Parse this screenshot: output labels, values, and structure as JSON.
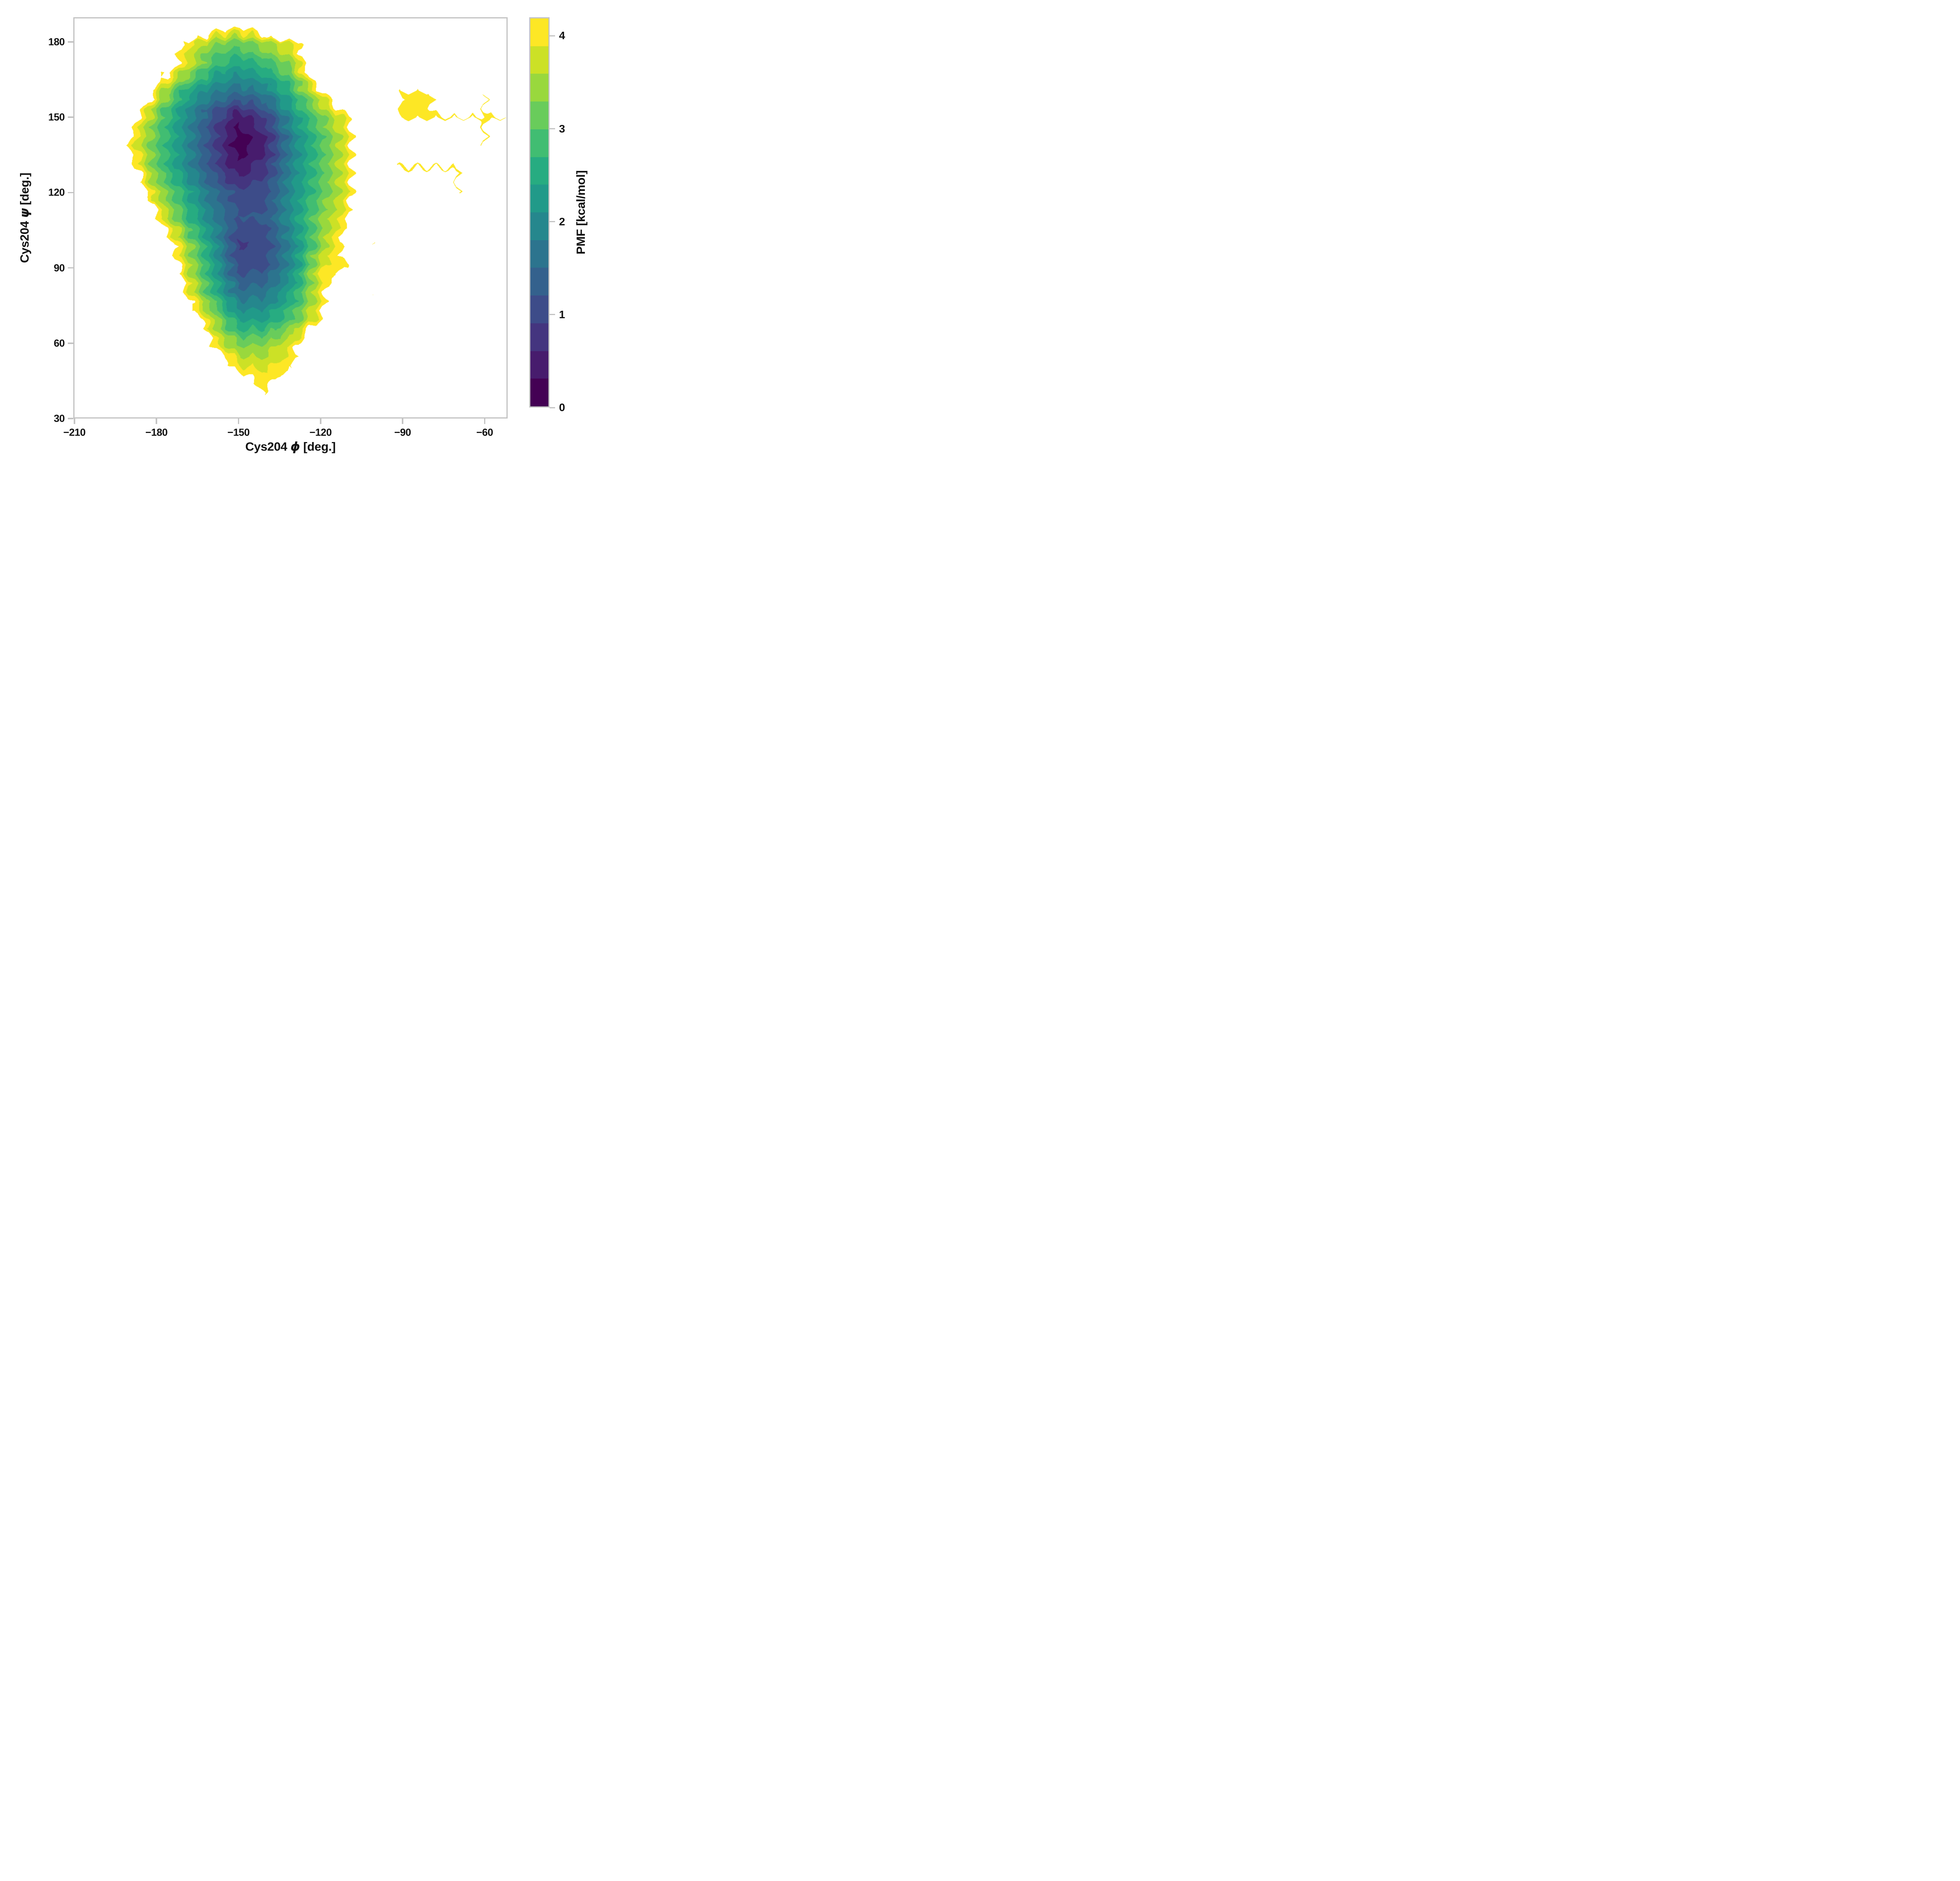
{
  "figure": {
    "background": "#ffffff",
    "frame_color": "#c3c3c3",
    "text_color": "#111111"
  },
  "axes": {
    "x": {
      "title_prefix": "Cys204 ",
      "title_greek": "ϕ",
      "title_suffix": " [deg.]",
      "tick_values": [
        -210,
        -180,
        -150,
        -120,
        -90,
        -60
      ],
      "tick_labels": [
        "−210",
        "−180",
        "−150",
        "−120",
        "−90",
        "−60"
      ],
      "range": [
        -210.4,
        -51.6
      ]
    },
    "y": {
      "title_prefix": "Cys204 ",
      "title_greek": "ψ",
      "title_suffix": " [deg.]",
      "tick_values": [
        30,
        60,
        90,
        120,
        150,
        180
      ],
      "tick_labels": [
        "30",
        "60",
        "90",
        "120",
        "150",
        "180"
      ],
      "range": [
        30,
        189.8
      ]
    }
  },
  "colorbar": {
    "label": "PMF [kcal/mol]",
    "tick_values": [
      0,
      1,
      2,
      3,
      4
    ],
    "tick_labels": [
      "0",
      "1",
      "2",
      "3",
      "4"
    ],
    "vmin": 0,
    "vmax": 4.2,
    "frame_color": "#c3c3c3"
  },
  "chart_data": {
    "type": "filled_contour",
    "xlabel": "Cys204 ϕ [deg.]",
    "ylabel": "Cys204 ψ [deg.]",
    "zlabel": "PMF [kcal/mol]",
    "x_range": [
      -210.4,
      -51.6
    ],
    "y_range": [
      30,
      189.8
    ],
    "x_ticks": [
      -210,
      -180,
      -150,
      -120,
      -90,
      -60
    ],
    "y_ticks": [
      30,
      60,
      90,
      120,
      150,
      180
    ],
    "z_ticks": [
      0,
      1,
      2,
      3,
      4
    ],
    "levels": [
      0,
      0.3,
      0.6,
      0.9,
      1.2,
      1.5,
      1.8,
      2.1,
      2.4,
      2.7,
      3.0,
      3.3,
      3.6,
      3.9,
      4.2
    ],
    "level_step": 0.3,
    "band_colors": [
      "#440154",
      "#471c6d",
      "#44357f",
      "#3d4c89",
      "#34618d",
      "#2c748e",
      "#25878d",
      "#219a89",
      "#27ac81",
      "#41bd72",
      "#69cc5b",
      "#99d83d",
      "#cce126",
      "#fde725"
    ],
    "no_data_value": 9.9,
    "global_minimum": {
      "phi": -150,
      "psi": 141,
      "pmf": 0.0
    },
    "secondary_basin": {
      "phi": -148,
      "psi": 100,
      "pmf": 0.85
    },
    "grid_phi": [
      -210,
      -200,
      -190,
      -180,
      -170,
      -160,
      -150,
      -140,
      -130,
      -120,
      -110,
      -100,
      -90,
      -80,
      -70,
      -60,
      -50
    ],
    "grid_psi": [
      190,
      180,
      170,
      160,
      150,
      140,
      130,
      120,
      110,
      100,
      90,
      80,
      70,
      60,
      50,
      40,
      30
    ],
    "pmf": [
      [
        9.9,
        9.9,
        9.9,
        9.9,
        9.9,
        5.5,
        5.0,
        5.5,
        9.9,
        9.9,
        9.9,
        9.9,
        9.9,
        9.9,
        9.9,
        9.9,
        9.9
      ],
      [
        9.9,
        9.9,
        9.9,
        5.5,
        4.1,
        3.45,
        3.15,
        3.6,
        4.05,
        5.0,
        9.9,
        9.9,
        9.9,
        9.9,
        9.9,
        9.9,
        9.9
      ],
      [
        9.9,
        9.9,
        9.9,
        5.0,
        3.9,
        2.8,
        2.35,
        2.7,
        3.4,
        5.5,
        9.9,
        9.9,
        9.9,
        9.9,
        9.9,
        9.9,
        9.9
      ],
      [
        9.9,
        9.9,
        6.0,
        3.9,
        2.6,
        1.9,
        1.55,
        1.85,
        2.75,
        4.0,
        5.5,
        9.9,
        4.1,
        4.1,
        9.9,
        4.15,
        9.9
      ],
      [
        9.9,
        9.9,
        4.7,
        3.2,
        2.1,
        1.15,
        0.35,
        0.95,
        2.2,
        3.2,
        4.05,
        6.0,
        3.95,
        4.0,
        4.1,
        4.15,
        4.15
      ],
      [
        9.9,
        9.9,
        4.1,
        3.05,
        2.1,
        1.05,
        0.1,
        0.55,
        1.9,
        2.9,
        3.9,
        6.0,
        9.9,
        9.9,
        9.9,
        4.1,
        9.9
      ],
      [
        9.9,
        9.9,
        4.6,
        3.1,
        2.1,
        1.15,
        0.35,
        0.8,
        2.0,
        2.95,
        3.95,
        6.0,
        3.9,
        4.05,
        4.15,
        9.9,
        9.9
      ],
      [
        9.9,
        9.9,
        5.2,
        3.6,
        2.6,
        1.6,
        1.0,
        1.1,
        2.1,
        3.0,
        3.9,
        6.0,
        9.9,
        9.9,
        4.1,
        9.9,
        9.9
      ],
      [
        9.9,
        9.9,
        9.9,
        4.2,
        2.9,
        1.9,
        1.2,
        1.25,
        2.2,
        3.3,
        4.1,
        9.9,
        9.9,
        4.15,
        9.9,
        9.9,
        9.9
      ],
      [
        9.9,
        9.9,
        9.9,
        5.2,
        3.6,
        2.3,
        0.85,
        1.0,
        2.0,
        3.3,
        4.6,
        4.1,
        9.9,
        9.9,
        9.9,
        9.9,
        9.9
      ],
      [
        9.9,
        9.9,
        9.9,
        5.5,
        3.9,
        2.5,
        1.05,
        1.15,
        2.1,
        3.9,
        4.15,
        9.9,
        9.9,
        9.9,
        9.9,
        9.9,
        9.9
      ],
      [
        9.9,
        9.9,
        9.9,
        9.9,
        4.3,
        2.8,
        1.6,
        1.7,
        2.5,
        3.9,
        5.5,
        4.15,
        9.9,
        9.9,
        9.9,
        9.9,
        9.9
      ],
      [
        9.9,
        9.9,
        9.9,
        9.9,
        5.0,
        3.6,
        2.3,
        2.3,
        3.0,
        4.1,
        6.0,
        9.9,
        9.9,
        9.9,
        9.9,
        9.9,
        9.9
      ],
      [
        9.9,
        9.9,
        9.9,
        9.9,
        9.9,
        4.1,
        3.2,
        3.3,
        3.9,
        5.5,
        9.9,
        9.9,
        9.9,
        9.9,
        9.9,
        9.9,
        9.9
      ],
      [
        9.9,
        9.9,
        9.9,
        9.9,
        9.9,
        5.5,
        4.0,
        3.85,
        4.15,
        9.9,
        9.9,
        9.9,
        9.9,
        9.9,
        9.9,
        9.9,
        9.9
      ],
      [
        9.9,
        9.9,
        9.9,
        9.9,
        9.9,
        9.9,
        5.0,
        4.1,
        5.5,
        9.9,
        9.9,
        9.9,
        9.9,
        9.9,
        9.9,
        9.9,
        9.9
      ],
      [
        9.9,
        9.9,
        9.9,
        9.9,
        9.9,
        9.9,
        9.9,
        9.9,
        9.9,
        9.9,
        9.9,
        9.9,
        9.9,
        9.9,
        9.9,
        9.9,
        9.9
      ]
    ]
  }
}
